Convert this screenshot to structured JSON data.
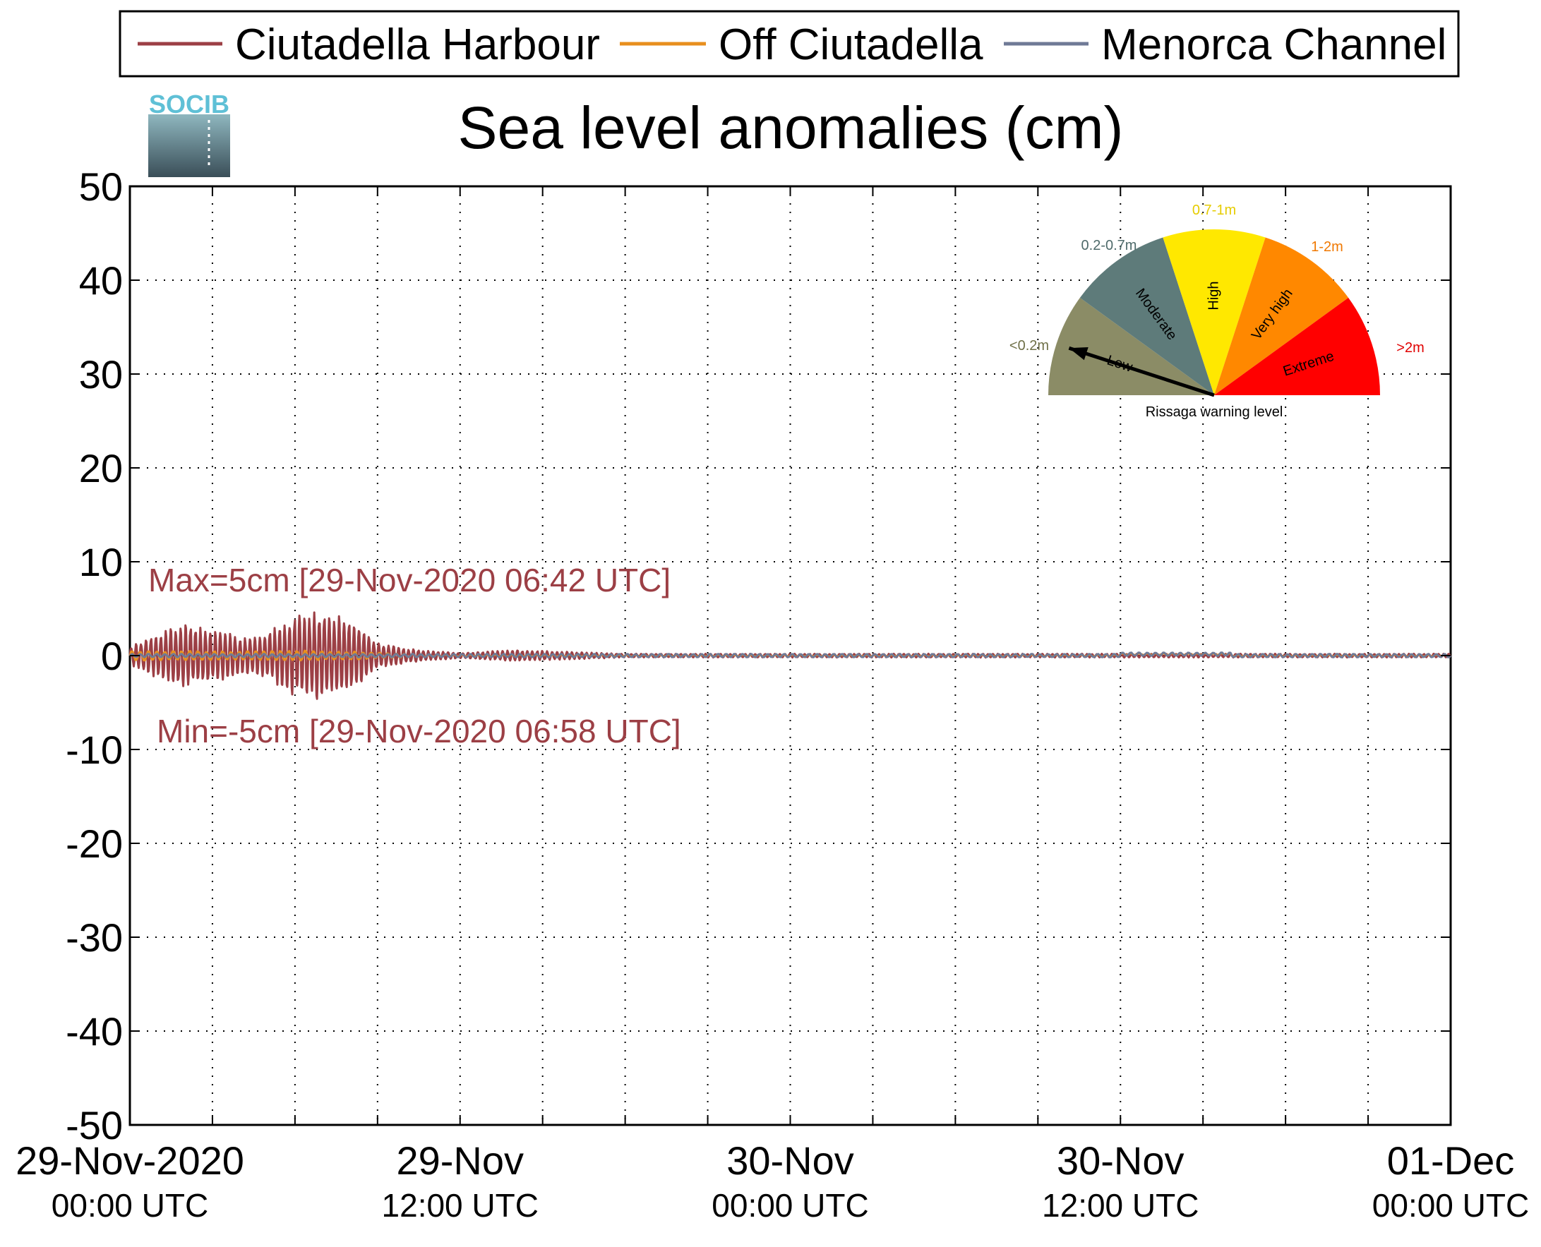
{
  "chart_data": {
    "type": "line",
    "title": "Sea level anomalies (cm)",
    "xlabel": "",
    "ylabel": "",
    "ylim": [
      -50,
      50
    ],
    "xlim": [
      "2020-11-29 00:00",
      "2020-12-01 00:00"
    ],
    "y_ticks": [
      "50",
      "40",
      "30",
      "20",
      "10",
      "0",
      "-10",
      "-20",
      "-30",
      "-40",
      "-50"
    ],
    "x_ticks": [
      {
        "top": "29-Nov-2020",
        "bottom": "00:00 UTC"
      },
      {
        "top": "29-Nov",
        "bottom": "12:00 UTC"
      },
      {
        "top": "30-Nov",
        "bottom": "00:00 UTC"
      },
      {
        "top": "30-Nov",
        "bottom": "12:00 UTC"
      },
      {
        "top": "01-Dec",
        "bottom": "00:00 UTC"
      }
    ],
    "grid": true,
    "legend_position": "top",
    "series": [
      {
        "name": "Ciutadella Harbour",
        "color": "#9c3f45",
        "envelope": [
          [
            0,
            1.0
          ],
          [
            1,
            2.5
          ],
          [
            2,
            3.5
          ],
          [
            3,
            3.0
          ],
          [
            4,
            2.0
          ],
          [
            5,
            2.5
          ],
          [
            6,
            4.5
          ],
          [
            7,
            5.0
          ],
          [
            8,
            4.0
          ],
          [
            9,
            1.5
          ],
          [
            10,
            0.8
          ],
          [
            11,
            0.5
          ],
          [
            12,
            0.3
          ],
          [
            14,
            0.6
          ],
          [
            15,
            0.5
          ],
          [
            16,
            0.4
          ],
          [
            17,
            0.3
          ],
          [
            18,
            0.2
          ],
          [
            24,
            0.2
          ],
          [
            36,
            0.2
          ],
          [
            48,
            0.2
          ]
        ]
      },
      {
        "name": "Off Ciutadella",
        "color": "#e88f1e",
        "envelope": [
          [
            0,
            0.6
          ],
          [
            4,
            0.5
          ],
          [
            6,
            0.6
          ],
          [
            8,
            0.5
          ],
          [
            10,
            0.2
          ],
          [
            12,
            0.1
          ],
          [
            48,
            0.1
          ]
        ]
      },
      {
        "name": "Menorca Channel",
        "color": "#6f7a96",
        "envelope": [
          [
            0,
            0.2
          ],
          [
            48,
            0.2
          ]
        ]
      }
    ],
    "annotations": [
      {
        "text": "Max=5cm [29-Nov-2020 06:42 UTC]",
        "color": "#9c3f45"
      },
      {
        "text": "Min=-5cm [29-Nov-2020 06:58 UTC]",
        "color": "#9c3f45"
      }
    ]
  },
  "logo": {
    "text": "SOCIB"
  },
  "gauge": {
    "caption": "Rissaga warning level",
    "needle_level": "Low",
    "sectors": [
      {
        "name": "Low",
        "range": "<0.2m",
        "color": "#8b8c66",
        "range_color": "#6f7048"
      },
      {
        "name": "Moderate",
        "range": "0.2-0.7m",
        "color": "#5e7b7a",
        "range_color": "#4e6a6a"
      },
      {
        "name": "High",
        "range": "0.7-1m",
        "color": "#ffe800",
        "range_color": "#e6cc00"
      },
      {
        "name": "Very high",
        "range": "1-2m",
        "color": "#ff8800",
        "range_color": "#f07800"
      },
      {
        "name": "Extreme",
        "range": ">2m",
        "color": "#ff0000",
        "range_color": "#e00000"
      }
    ]
  }
}
